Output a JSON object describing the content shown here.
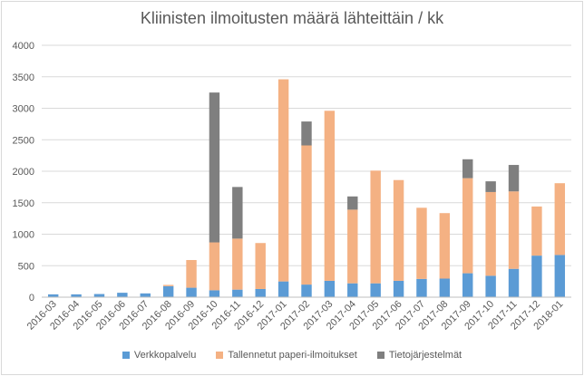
{
  "chart_data": {
    "type": "bar",
    "stacked": true,
    "title": "Kliinisten ilmoitusten määrä lähteittäin / kk",
    "xlabel": "",
    "ylabel": "",
    "ylim": [
      0,
      4000
    ],
    "yticks": [
      "0",
      "500",
      "1000",
      "1500",
      "2000",
      "2500",
      "3000",
      "3500",
      "4000"
    ],
    "grid": true,
    "legend_position": "bottom",
    "categories": [
      "2016-03",
      "2016-04",
      "2016-05",
      "2016-06",
      "2016-07",
      "2016-08",
      "2016-09",
      "2016-10",
      "2016-11",
      "2016-12",
      "2017-01",
      "2017-02",
      "2017-03",
      "2017-04",
      "2017-05",
      "2017-06",
      "2017-07",
      "2017-08",
      "2017-09",
      "2017-10",
      "2017-11",
      "2017-12",
      "2018-01"
    ],
    "series": [
      {
        "name": "Verkkopalvelu",
        "color": "#5b9bd5",
        "values": [
          45,
          45,
          50,
          70,
          60,
          175,
          150,
          110,
          120,
          130,
          250,
          200,
          260,
          220,
          220,
          260,
          290,
          295,
          380,
          340,
          450,
          660,
          670
        ]
      },
      {
        "name": "Tallennetut paperi-ilmoitukset",
        "color": "#f4b183",
        "values": [
          0,
          0,
          0,
          0,
          0,
          20,
          440,
          760,
          810,
          730,
          3210,
          2210,
          2700,
          1170,
          1790,
          1600,
          1130,
          1040,
          1510,
          1330,
          1230,
          780,
          1140
        ]
      },
      {
        "name": "Tietojärjestelmät",
        "color": "#7f7f7f",
        "values": [
          0,
          0,
          0,
          0,
          0,
          0,
          0,
          2380,
          820,
          0,
          0,
          380,
          0,
          210,
          0,
          0,
          0,
          0,
          300,
          170,
          420,
          0,
          0
        ]
      }
    ]
  }
}
